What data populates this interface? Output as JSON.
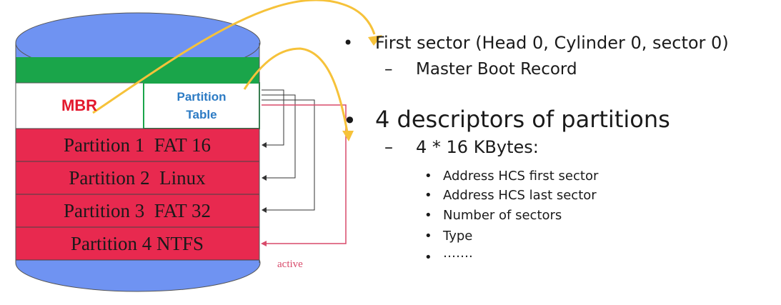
{
  "colors": {
    "disk_blue": "#6f93f2",
    "green_band": "#1aa54a",
    "partition_red": "#e8294f",
    "mbr_text": "#e3182d",
    "partition_table_text": "#2c7bc4",
    "arrow_yellow": "#f6c23a",
    "active_link": "#d84a6a",
    "link_dark": "#333333"
  },
  "disk": {
    "mbr_label": "MBR",
    "partition_table_line1": "Partition",
    "partition_table_line2": "Table",
    "partitions": [
      {
        "label": "Partition 1  FAT 16"
      },
      {
        "label": "Partition 2  Linux"
      },
      {
        "label": "Partition 3  FAT 32"
      },
      {
        "label": "Partition 4 NTFS"
      }
    ],
    "active_label": "active"
  },
  "notes": {
    "first_sector": "First sector (Head 0, Cylinder 0, sector 0)",
    "first_sector_sub": "Master Boot Record",
    "descriptors": "4 descriptors of partitions",
    "descriptors_sub": "4 * 16 KBytes:",
    "items": [
      "Address HCS first sector",
      "Address HCS last sector",
      "Number of sectors",
      "Type",
      "……."
    ]
  }
}
